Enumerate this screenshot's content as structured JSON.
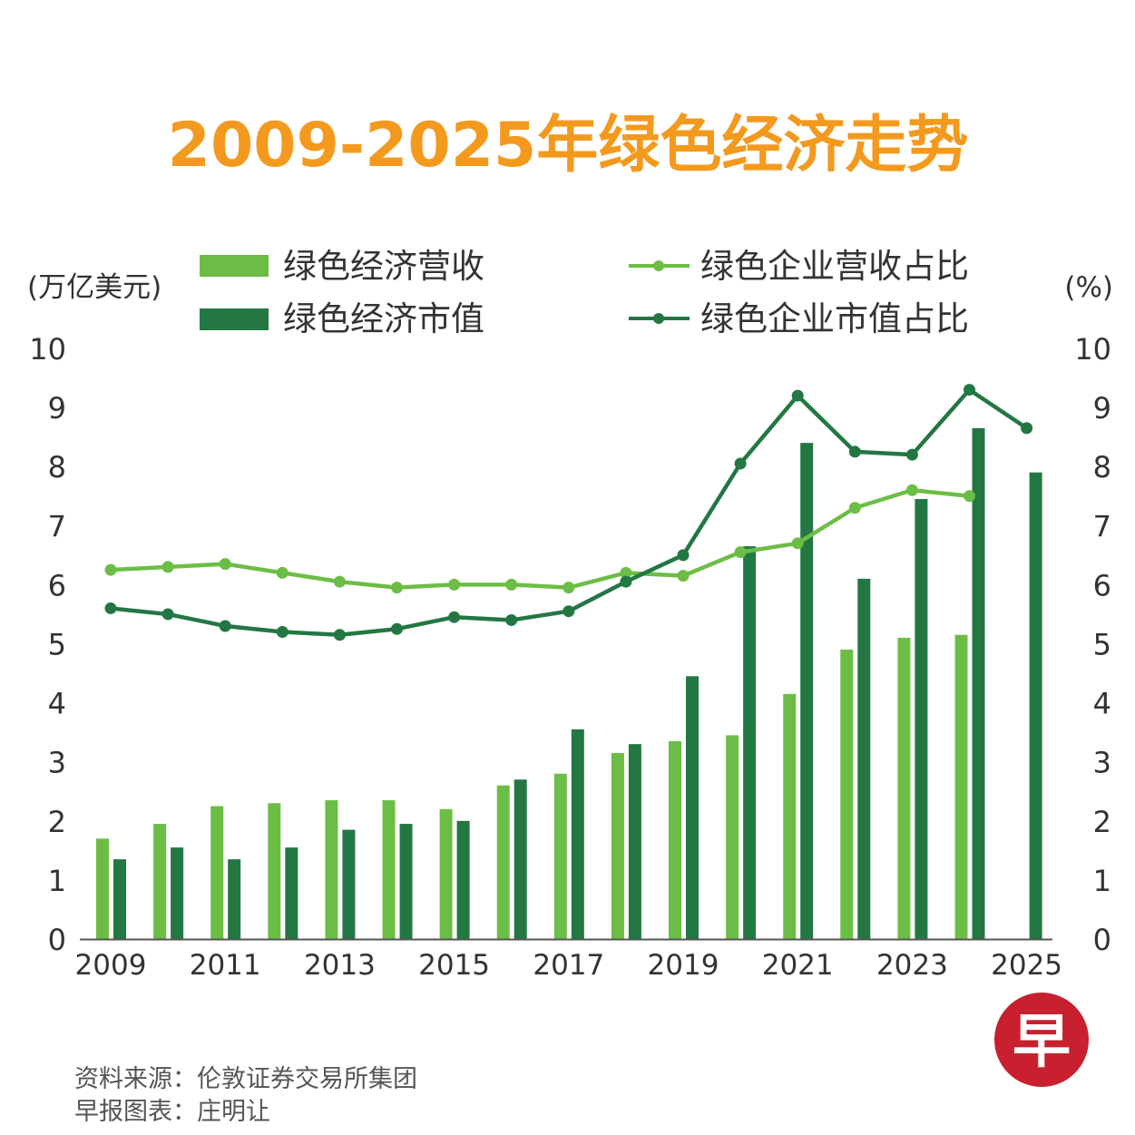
{
  "colors": {
    "title": "#f39a1e",
    "revenue_bar": "#6cbd45",
    "market_bar": "#237743",
    "revenue_line": "#6cbd45",
    "market_line": "#237743",
    "text": "#333333",
    "axis": "#555555",
    "logo": "#c8202f"
  },
  "logo": {
    "char": "早"
  },
  "source": {
    "line1": "资料来源：伦敦证券交易所集团",
    "line2": "早报图表：庄明让"
  },
  "chart_data": {
    "type": "bar+line",
    "title": "2009-2025年绿色经济走势",
    "left_unit": "(万亿美元)",
    "right_unit": "(%)",
    "ylim": [
      0,
      10
    ],
    "y_ticks": [
      "0",
      "1",
      "2",
      "3",
      "4",
      "5",
      "6",
      "7",
      "8",
      "9",
      "10"
    ],
    "years": [
      2009,
      2010,
      2011,
      2012,
      2013,
      2014,
      2015,
      2016,
      2017,
      2018,
      2019,
      2020,
      2021,
      2022,
      2023,
      2024,
      2025
    ],
    "x_tick_labels": [
      "2009",
      "2011",
      "2013",
      "2015",
      "2017",
      "2019",
      "2021",
      "2023",
      "2025"
    ],
    "series": [
      {
        "name": "绿色经济营收",
        "kind": "bar",
        "axis": "left",
        "values": [
          1.7,
          1.95,
          2.25,
          2.3,
          2.35,
          2.35,
          2.2,
          2.6,
          2.8,
          3.15,
          3.35,
          3.45,
          4.15,
          4.9,
          5.1,
          5.15,
          null
        ]
      },
      {
        "name": "绿色经济市值",
        "kind": "bar",
        "axis": "left",
        "values": [
          1.35,
          1.55,
          1.35,
          1.55,
          1.85,
          1.95,
          2.0,
          2.7,
          3.55,
          3.3,
          4.45,
          6.65,
          8.4,
          6.1,
          7.45,
          8.65,
          7.9
        ]
      },
      {
        "name": "绿色企业营收占比",
        "kind": "line",
        "axis": "right",
        "values": [
          6.25,
          6.3,
          6.35,
          6.2,
          6.05,
          5.95,
          6.0,
          6.0,
          5.95,
          6.2,
          6.15,
          6.55,
          6.7,
          7.3,
          7.6,
          7.5,
          null
        ]
      },
      {
        "name": "绿色企业市值占比",
        "kind": "line",
        "axis": "right",
        "values": [
          5.6,
          5.5,
          5.3,
          5.2,
          5.15,
          5.25,
          5.45,
          5.4,
          5.55,
          6.05,
          6.5,
          8.05,
          9.2,
          8.25,
          8.2,
          9.3,
          8.65
        ]
      }
    ],
    "legend": [
      {
        "label": "绿色经济营收",
        "kind": "bar"
      },
      {
        "label": "绿色经济市值",
        "kind": "bar"
      },
      {
        "label": "绿色企业营收占比",
        "kind": "line"
      },
      {
        "label": "绿色企业市值占比",
        "kind": "line"
      }
    ]
  }
}
